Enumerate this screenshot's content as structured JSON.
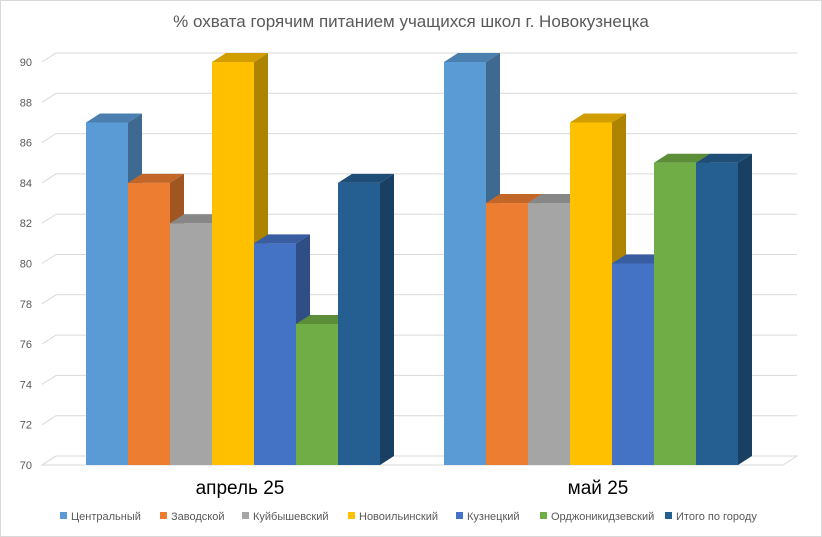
{
  "chart_data": {
    "type": "bar",
    "title": "% охвата горячим питанием учащихся школ г. Новокузнецка",
    "categories": [
      "апрель 25",
      "май 25"
    ],
    "series": [
      {
        "name": "Центральный",
        "values": [
          87,
          90
        ],
        "color": "#5B9BD5"
      },
      {
        "name": "Заводской",
        "values": [
          84,
          83
        ],
        "color": "#ED7D31"
      },
      {
        "name": "Куйбышевский",
        "values": [
          82,
          83
        ],
        "color": "#A5A5A5"
      },
      {
        "name": "Новоильинский",
        "values": [
          90,
          87
        ],
        "color": "#FFC000"
      },
      {
        "name": "Кузнецкий",
        "values": [
          81,
          80
        ],
        "color": "#4472C4"
      },
      {
        "name": "Орджоникидзевский",
        "values": [
          77,
          85
        ],
        "color": "#70AD47"
      },
      {
        "name": "Итого по городу",
        "values": [
          84,
          85
        ],
        "color": "#255E91"
      }
    ],
    "ylim": [
      70,
      90
    ],
    "yticks": [
      70,
      72,
      74,
      76,
      78,
      80,
      82,
      84,
      86,
      88,
      90
    ],
    "grid": true,
    "legend_position": "bottom",
    "style": "3d-clustered-column"
  }
}
